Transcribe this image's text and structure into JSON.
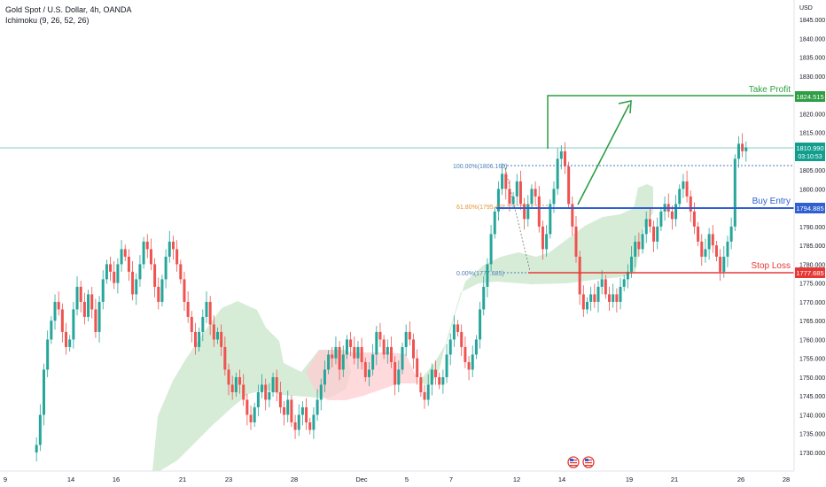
{
  "header": {
    "symbol_line": "Gold Spot / U.S. Dollar, 4h, OANDA",
    "indicator_line": "Ichimoku (9, 26, 52, 26)"
  },
  "price_axis": {
    "currency": "USD",
    "ticks": [
      "1845.000",
      "1840.000",
      "1835.000",
      "1830.000",
      "1820.000",
      "1815.000",
      "1805.000",
      "1800.000",
      "1790.000",
      "1785.000",
      "1780.000",
      "1775.000",
      "1770.000",
      "1765.000",
      "1760.000",
      "1755.000",
      "1750.000",
      "1745.000",
      "1740.000",
      "1735.000",
      "1730.000"
    ],
    "tick_values": [
      1845,
      1840,
      1835,
      1830,
      1820,
      1815,
      1805,
      1800,
      1790,
      1785,
      1780,
      1775,
      1770,
      1765,
      1760,
      1755,
      1750,
      1745,
      1740,
      1735,
      1730
    ],
    "badges": {
      "take_profit": "1824.515",
      "last_price": "1810.990",
      "countdown": "03:10:53",
      "buy_entry": "1794.885",
      "stop_loss": "1777.685"
    }
  },
  "time_axis": {
    "labels": [
      "9",
      "14",
      "16",
      "21",
      "23",
      "28",
      "Dec",
      "5",
      "7",
      "12",
      "14",
      "19",
      "21",
      "26",
      "28"
    ]
  },
  "annotations": {
    "take_profit": "Take Profit",
    "buy_entry": "Buy Entry",
    "stop_loss": "Stop Loss",
    "fib_100": "100.00%(1806.160)",
    "fib_618": "61.80%(1795.4?)",
    "fib_0": "0.00%(1777.685)"
  },
  "colors": {
    "up": "#26a69a",
    "down": "#ef5350",
    "take_profit": "#2e9e44",
    "buy_entry": "#2f5fd0",
    "stop_loss": "#e53935",
    "last_price": "#119e8d",
    "cloud_bull": "#c8e6c9",
    "cloud_bear": "#ffcdd2",
    "fib_blue": "#4a7fb5",
    "fib_orange": "#e6963c"
  },
  "chart_data": {
    "type": "candlestick",
    "title": "Gold Spot / U.S. Dollar, 4h, OANDA",
    "ylim": [
      1728,
      1848
    ],
    "lines": [
      {
        "name": "Take Profit",
        "value": 1824.515
      },
      {
        "name": "Buy Entry",
        "value": 1794.885
      },
      {
        "name": "Stop Loss",
        "value": 1777.685
      }
    ],
    "fibonacci": [
      {
        "level": "100.00%",
        "value": 1806.16
      },
      {
        "level": "61.80%",
        "value": 1795.4
      },
      {
        "level": "0.00%",
        "value": 1777.685
      }
    ],
    "last_price": 1810.99
  },
  "events": {
    "flag_icons": [
      "us-flag-icon",
      "us-flag-icon"
    ]
  }
}
